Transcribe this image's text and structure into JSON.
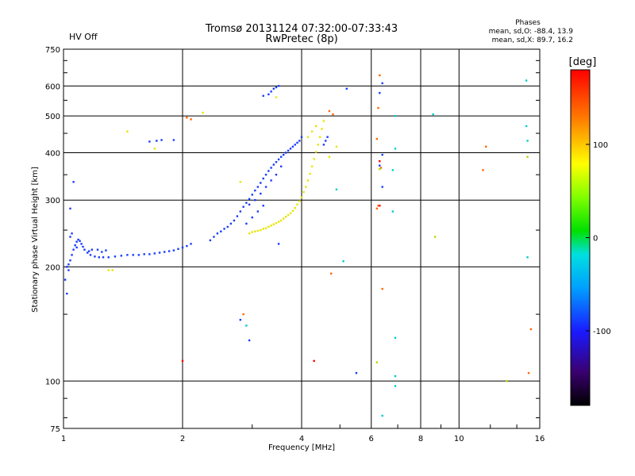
{
  "header": {
    "title": "Tromsø 20131124 07:32:00-07:33:43",
    "subtitle": "RwPretec (8p)",
    "hv_status": "HV Off",
    "hv_color": "#cc0000",
    "phases_title": "Phases",
    "phases_line1": "mean, sd,O: -88.4, 13.9",
    "phases_line2": "mean, sd,X:  89.7, 16.2"
  },
  "colorbar": {
    "unit_label": "[deg]",
    "min": -180,
    "max": 180,
    "tick_labels": [
      "100",
      "0",
      "-100"
    ],
    "tick_values": [
      100,
      0,
      -100
    ]
  },
  "chart_data": {
    "type": "scatter",
    "title": "Tromsø 20131124 07:32:00-07:33:43",
    "subtitle": "RwPretec (8p)",
    "xlabel": "Frequency [MHz]",
    "ylabel": "Stationary phase Virtual Height [km]",
    "x_scale": "log",
    "y_scale": "log",
    "xlim": [
      1,
      16
    ],
    "ylim": [
      75,
      750
    ],
    "x_ticks": [
      1,
      2,
      4,
      6,
      8,
      10,
      16
    ],
    "x_tick_labels": [
      "1",
      "2",
      "4",
      "6",
      "8",
      "10",
      "16"
    ],
    "y_ticks": [
      75,
      100,
      200,
      300,
      400,
      500,
      600,
      750
    ],
    "y_tick_labels": [
      "75",
      "100",
      "200",
      "300",
      "400",
      "500",
      "600",
      "750"
    ],
    "grid": true,
    "color_encoding": "phase [deg]",
    "series": [
      {
        "points": [
          [
            1.02,
            200,
            -110
          ],
          [
            1.03,
            203,
            -105
          ],
          [
            1.04,
            208,
            -110
          ],
          [
            1.05,
            215,
            -108
          ],
          [
            1.06,
            222,
            -112
          ],
          [
            1.07,
            228,
            -110
          ],
          [
            1.08,
            233,
            -108
          ],
          [
            1.09,
            236,
            -110
          ],
          [
            1.1,
            234,
            -112
          ],
          [
            1.11,
            230,
            -110
          ],
          [
            1.12,
            226,
            -108
          ],
          [
            1.13,
            222,
            -110
          ],
          [
            1.15,
            218,
            -112
          ],
          [
            1.17,
            215,
            -110
          ],
          [
            1.2,
            213,
            -108
          ],
          [
            1.23,
            212,
            -110
          ],
          [
            1.26,
            212,
            -112
          ],
          [
            1.3,
            212,
            -110
          ],
          [
            1.35,
            213,
            -108
          ],
          [
            1.4,
            214,
            -110
          ],
          [
            1.45,
            215,
            -112
          ],
          [
            1.5,
            215,
            -110
          ],
          [
            1.55,
            215,
            -108
          ],
          [
            1.6,
            216,
            -110
          ],
          [
            1.65,
            216,
            -112
          ],
          [
            1.7,
            217,
            -110
          ],
          [
            1.75,
            218,
            -108
          ],
          [
            1.8,
            219,
            -110
          ],
          [
            1.85,
            220,
            -112
          ],
          [
            1.9,
            221,
            -110
          ],
          [
            1.95,
            223,
            -108
          ],
          [
            2.0,
            225,
            -110
          ],
          [
            2.05,
            227,
            -112
          ],
          [
            2.1,
            230,
            -110
          ],
          [
            1.01,
            185,
            -108
          ],
          [
            1.02,
            170,
            -110
          ],
          [
            1.03,
            196,
            -105
          ],
          [
            1.04,
            240,
            -110
          ],
          [
            1.05,
            245,
            -112
          ],
          [
            1.04,
            285,
            -110
          ],
          [
            1.06,
            335,
            -105
          ],
          [
            1.08,
            225,
            -110
          ],
          [
            1.16,
            220,
            -112
          ],
          [
            1.18,
            222,
            -110
          ],
          [
            1.22,
            222,
            -112
          ],
          [
            1.25,
            219,
            -108
          ],
          [
            1.28,
            221,
            -110
          ],
          [
            2.35,
            235,
            -108
          ],
          [
            2.4,
            240,
            -110
          ],
          [
            2.45,
            245,
            -105
          ],
          [
            2.5,
            248,
            -108
          ],
          [
            2.55,
            252,
            -110
          ],
          [
            2.6,
            255,
            -100
          ],
          [
            2.65,
            260,
            -105
          ],
          [
            2.7,
            265,
            -110
          ],
          [
            2.75,
            272,
            -108
          ],
          [
            2.8,
            280,
            -110
          ],
          [
            2.85,
            288,
            -105
          ],
          [
            2.9,
            295,
            -108
          ],
          [
            2.95,
            302,
            -110
          ],
          [
            3.0,
            310,
            -108
          ],
          [
            3.05,
            318,
            -105
          ],
          [
            3.1,
            325,
            -108
          ],
          [
            3.15,
            333,
            -110
          ],
          [
            3.2,
            342,
            -108
          ],
          [
            3.25,
            350,
            -105
          ],
          [
            3.3,
            358,
            -108
          ],
          [
            3.35,
            365,
            -110
          ],
          [
            3.4,
            372,
            -108
          ],
          [
            3.45,
            378,
            -105
          ],
          [
            3.5,
            384,
            -108
          ],
          [
            3.55,
            390,
            -110
          ],
          [
            3.6,
            395,
            -108
          ],
          [
            3.65,
            400,
            -105
          ],
          [
            3.7,
            405,
            -108
          ],
          [
            3.75,
            410,
            -110
          ],
          [
            3.8,
            415,
            -108
          ],
          [
            3.85,
            420,
            -105
          ],
          [
            3.9,
            425,
            -108
          ],
          [
            3.95,
            430,
            -110
          ],
          [
            4.0,
            440,
            -108
          ],
          [
            2.95,
            292,
            -110
          ],
          [
            3.05,
            300,
            -112
          ],
          [
            3.15,
            312,
            -110
          ],
          [
            3.25,
            325,
            -112
          ],
          [
            3.35,
            338,
            -110
          ],
          [
            3.45,
            350,
            -108
          ],
          [
            3.55,
            368,
            -110
          ],
          [
            2.9,
            260,
            -105
          ],
          [
            3.0,
            270,
            -108
          ],
          [
            3.1,
            280,
            -110
          ],
          [
            3.2,
            290,
            -112
          ],
          [
            3.2,
            565,
            -108
          ],
          [
            3.3,
            570,
            -110
          ],
          [
            3.35,
            580,
            -112
          ],
          [
            3.4,
            590,
            -110
          ],
          [
            3.45,
            595,
            -108
          ],
          [
            3.5,
            600,
            -110
          ],
          [
            1.65,
            428,
            -108
          ],
          [
            1.72,
            430,
            -110
          ],
          [
            1.77,
            432,
            -112
          ],
          [
            1.9,
            432,
            -105
          ],
          [
            4.55,
            420,
            -112
          ],
          [
            4.6,
            430,
            -110
          ],
          [
            4.65,
            440,
            -108
          ],
          [
            3.5,
            230,
            -105
          ],
          [
            2.95,
            128,
            -110
          ],
          [
            2.8,
            145,
            -100
          ],
          [
            5.2,
            590,
            -105
          ],
          [
            5.5,
            105,
            -105
          ],
          [
            6.3,
            575,
            -110
          ],
          [
            6.3,
            370,
            -100
          ],
          [
            6.4,
            325,
            -110
          ],
          [
            6.4,
            610,
            -105
          ],
          [
            6.4,
            395,
            -90
          ]
        ],
        "color": "#1a3cff"
      },
      {
        "points": [
          [
            2.95,
            245,
            100
          ],
          [
            3.0,
            247,
            105
          ],
          [
            3.05,
            248,
            100
          ],
          [
            3.1,
            249,
            102
          ],
          [
            3.15,
            250,
            100
          ],
          [
            3.2,
            252,
            105
          ],
          [
            3.25,
            253,
            100
          ],
          [
            3.3,
            255,
            102
          ],
          [
            3.35,
            257,
            100
          ],
          [
            3.4,
            259,
            105
          ],
          [
            3.45,
            261,
            100
          ],
          [
            3.5,
            263,
            102
          ],
          [
            3.55,
            265,
            100
          ],
          [
            3.6,
            268,
            105
          ],
          [
            3.65,
            271,
            100
          ],
          [
            3.7,
            274,
            102
          ],
          [
            3.75,
            277,
            100
          ],
          [
            3.8,
            281,
            105
          ],
          [
            3.85,
            286,
            100
          ],
          [
            3.9,
            292,
            102
          ],
          [
            3.95,
            298,
            100
          ],
          [
            4.0,
            305,
            105
          ],
          [
            4.05,
            315,
            100
          ],
          [
            4.1,
            325,
            102
          ],
          [
            4.15,
            338,
            100
          ],
          [
            4.2,
            352,
            105
          ],
          [
            4.25,
            368,
            100
          ],
          [
            4.3,
            385,
            102
          ],
          [
            4.35,
            402,
            100
          ],
          [
            4.4,
            420,
            105
          ],
          [
            4.45,
            440,
            100
          ],
          [
            4.5,
            462,
            102
          ],
          [
            4.55,
            485,
            100
          ],
          [
            4.15,
            440,
            95
          ],
          [
            4.25,
            455,
            98
          ],
          [
            4.35,
            470,
            100
          ],
          [
            1.45,
            455,
            100
          ],
          [
            1.7,
            410,
            98
          ],
          [
            2.25,
            510,
            105
          ],
          [
            2.8,
            335,
            100
          ],
          [
            3.45,
            560,
            98
          ],
          [
            1.3,
            196,
            100
          ],
          [
            1.33,
            196,
            105
          ],
          [
            4.7,
            390,
            95
          ],
          [
            4.9,
            415,
            100
          ]
        ],
        "color": "#e6e600"
      },
      {
        "points": [
          [
            2.05,
            495,
            140
          ],
          [
            2.1,
            490,
            150
          ],
          [
            4.7,
            515,
            160
          ],
          [
            4.8,
            505,
            165
          ],
          [
            2.85,
            150,
            150
          ],
          [
            6.3,
            640,
            155
          ],
          [
            6.25,
            525,
            170
          ],
          [
            6.2,
            435,
            145
          ],
          [
            6.25,
            290,
            160
          ],
          [
            11.5,
            360,
            165
          ],
          [
            11.7,
            415,
            140
          ],
          [
            15.0,
            105,
            160
          ],
          [
            15.2,
            137,
            140
          ],
          [
            6.2,
            285,
            155
          ],
          [
            6.35,
            365,
            150
          ],
          [
            6.4,
            175,
            170
          ],
          [
            4.75,
            192,
            165
          ]
        ],
        "color": "#ff6600"
      },
      {
        "points": [
          [
            2.0,
            113,
            175
          ],
          [
            4.3,
            113,
            175
          ],
          [
            6.3,
            290,
            178
          ],
          [
            6.3,
            380,
            -178
          ]
        ],
        "color": "#ff0000"
      },
      {
        "points": [
          [
            6.9,
            130,
            -40
          ],
          [
            6.9,
            410,
            -40
          ],
          [
            6.8,
            360,
            -40
          ],
          [
            6.9,
            500,
            -40
          ],
          [
            6.8,
            280,
            -40
          ],
          [
            6.4,
            81,
            -40
          ],
          [
            6.9,
            97,
            -40
          ],
          [
            6.9,
            103,
            -40
          ],
          [
            14.8,
            470,
            -40
          ],
          [
            14.9,
            430,
            -40
          ],
          [
            8.6,
            505,
            -30
          ],
          [
            4.9,
            320,
            -40
          ],
          [
            5.1,
            207,
            -40
          ],
          [
            2.9,
            140,
            -40
          ],
          [
            14.8,
            620,
            -40
          ],
          [
            14.9,
            212,
            -40
          ]
        ],
        "color": "#00cccc"
      },
      {
        "points": [
          [
            6.2,
            112,
            40
          ],
          [
            8.7,
            240,
            60
          ],
          [
            14.9,
            390,
            80
          ],
          [
            13.2,
            100,
            70
          ],
          [
            6.3,
            362,
            70
          ]
        ],
        "color": "#aadd00"
      }
    ]
  }
}
